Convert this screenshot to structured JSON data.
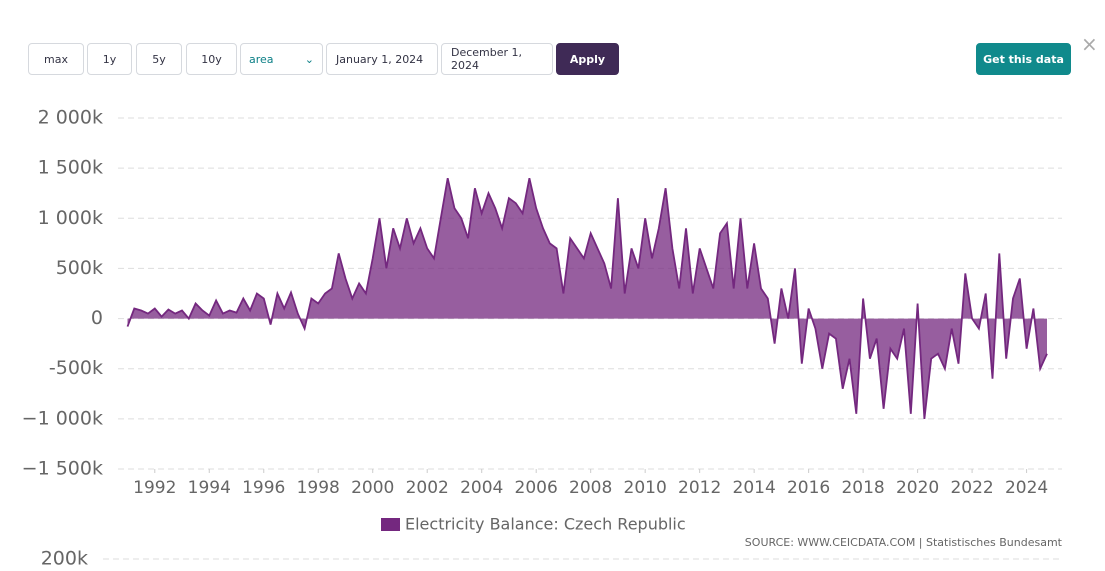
{
  "ui": {
    "range_buttons": [
      "max",
      "1y",
      "5y",
      "10y"
    ],
    "chart_type": "area",
    "date_from": "January 1, 2024",
    "date_to": "December 1, 2024",
    "apply": "Apply",
    "get_data": "Get this data"
  },
  "chart_data": [
    {
      "type": "area",
      "series": [
        {
          "name": "Electricity Balance: Czech Republic",
          "color": "#74287f",
          "values": [
            -80000,
            100000,
            80000,
            50000,
            100000,
            20000,
            90000,
            50000,
            80000,
            0,
            150000,
            80000,
            30000,
            180000,
            50000,
            80000,
            60000,
            200000,
            80000,
            250000,
            200000,
            -60000,
            250000,
            100000,
            260000,
            50000,
            -100000,
            200000,
            150000,
            250000,
            300000,
            650000,
            400000,
            200000,
            350000,
            250000,
            600000,
            1000000,
            500000,
            900000,
            700000,
            1000000,
            750000,
            900000,
            700000,
            600000,
            1000000,
            1400000,
            1100000,
            1000000,
            800000,
            1300000,
            1050000,
            1250000,
            1100000,
            900000,
            1200000,
            1150000,
            1050000,
            1400000,
            1100000,
            900000,
            750000,
            700000,
            250000,
            800000,
            700000,
            600000,
            850000,
            700000,
            550000,
            300000,
            1200000,
            250000,
            700000,
            500000,
            1000000,
            600000,
            900000,
            1300000,
            700000,
            300000,
            900000,
            250000,
            700000,
            500000,
            300000,
            850000,
            950000,
            300000,
            1000000,
            300000,
            750000,
            300000,
            200000,
            -250000,
            300000,
            0,
            500000,
            -450000,
            100000,
            -100000,
            -500000,
            -150000,
            -200000,
            -700000,
            -400000,
            -950000,
            200000,
            -400000,
            -200000,
            -900000,
            -300000,
            -400000,
            -100000,
            -950000,
            150000,
            -1000000,
            -400000,
            -350000,
            -500000,
            -100000,
            -450000,
            450000,
            0,
            -100000,
            250000,
            -600000,
            650000,
            -400000,
            200000,
            400000,
            -300000,
            100000,
            -500000,
            -350000
          ]
        }
      ],
      "x": [
        1991,
        1991.25,
        1991.5,
        1991.75,
        1992,
        1992.25,
        1992.5,
        1992.75,
        1993,
        1993.25,
        1993.5,
        1993.75,
        1994,
        1994.25,
        1994.5,
        1994.75,
        1995,
        1995.25,
        1995.5,
        1995.75,
        1996,
        1996.25,
        1996.5,
        1996.75,
        1997,
        1997.25,
        1997.5,
        1997.75,
        1998,
        1998.25,
        1998.5,
        1998.75,
        1999,
        1999.25,
        1999.5,
        1999.75,
        2000,
        2000.25,
        2000.5,
        2000.75,
        2001,
        2001.25,
        2001.5,
        2001.75,
        2002,
        2002.25,
        2002.5,
        2002.75,
        2003,
        2003.25,
        2003.5,
        2003.75,
        2004,
        2004.25,
        2004.5,
        2004.75,
        2005,
        2005.25,
        2005.5,
        2005.75,
        2006,
        2006.25,
        2006.5,
        2006.75,
        2007,
        2007.25,
        2007.5,
        2007.75,
        2008,
        2008.25,
        2008.5,
        2008.75,
        2009,
        2009.25,
        2009.5,
        2009.75,
        2010,
        2010.25,
        2010.5,
        2010.75,
        2011,
        2011.25,
        2011.5,
        2011.75,
        2012,
        2012.25,
        2012.5,
        2012.75,
        2013,
        2013.25,
        2013.5,
        2013.75,
        2014,
        2014.25,
        2014.5,
        2014.75,
        2015,
        2015.25,
        2015.5,
        2015.75,
        2016,
        2016.25,
        2016.5,
        2016.75,
        2017,
        2017.25,
        2017.5,
        2017.75,
        2018,
        2018.25,
        2018.5,
        2018.75,
        2019,
        2019.25,
        2019.5,
        2019.75,
        2020,
        2020.25,
        2020.5,
        2020.75,
        2021,
        2021.25,
        2021.5,
        2021.75,
        2022,
        2022.25,
        2022.5,
        2022.75,
        2023,
        2023.25,
        2023.5,
        2023.75,
        2024,
        2024.25,
        2024.5,
        2024.75
      ],
      "xlim": [
        1990.65,
        2025.3
      ],
      "xticks": [
        1992,
        1994,
        1996,
        1998,
        2000,
        2002,
        2004,
        2006,
        2008,
        2010,
        2012,
        2014,
        2016,
        2018,
        2020,
        2022,
        2024
      ],
      "ylim": [
        -1500000,
        2000000
      ],
      "yticks": [
        {
          "value": -1500000,
          "label": "−1 500k"
        },
        {
          "value": -1000000,
          "label": "−1 000k"
        },
        {
          "value": -500000,
          "label": "-500k"
        },
        0,
        {
          "value": 500000,
          "label": "500k"
        },
        {
          "value": 1000000,
          "label": "1 000k"
        },
        {
          "value": 1500000,
          "label": "1 500k"
        },
        {
          "value": 2000000,
          "label": "2 000k"
        }
      ],
      "grid": true,
      "source": "SOURCE: WWW.CEICDATA.COM | Statistisches Bundesamt"
    },
    {
      "type": "area",
      "yticks": [
        {
          "value": 200000,
          "label": "200k"
        }
      ]
    }
  ]
}
